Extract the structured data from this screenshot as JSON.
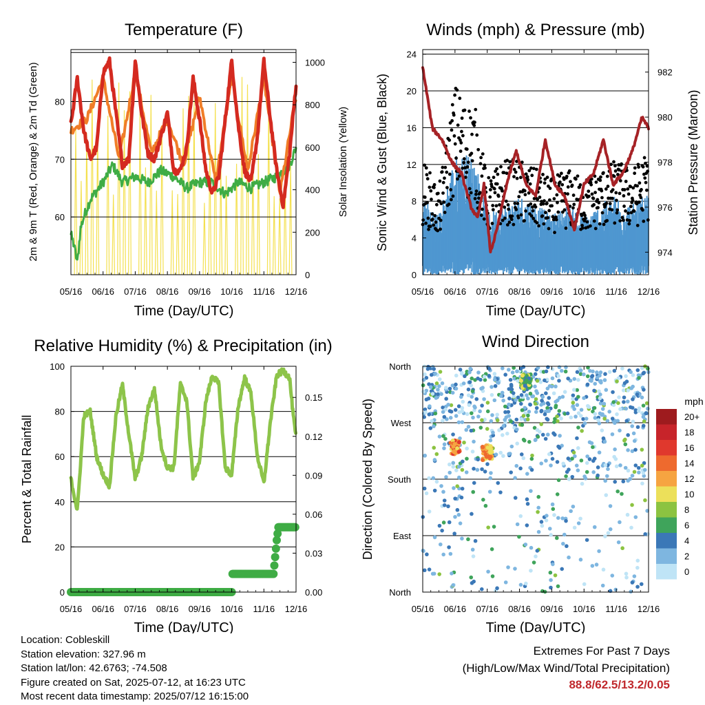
{
  "chart_data": [
    {
      "type": "line",
      "title": "Temperature (F)",
      "xlabel": "Time (Day/UTC)",
      "ylabel": "2m & 9m T (Red, Orange) & 2m Td (Green)",
      "y2label": "Solar Insolation (Yellow)",
      "x_ticks": [
        "05/16",
        "06/16",
        "07/16",
        "08/16",
        "09/16",
        "10/16",
        "11/16",
        "12/16"
      ],
      "ylim": [
        50,
        89
      ],
      "y_ticks": [
        60,
        70,
        80
      ],
      "y2lim": [
        0,
        1060
      ],
      "y2_ticks": [
        0,
        200,
        400,
        600,
        800,
        1000
      ],
      "colors": {
        "t2m": "#d42a20",
        "t9m": "#f07d28",
        "td": "#3fac45",
        "solar": "#f3dd3c"
      },
      "series": [
        {
          "name": "2m T",
          "axis": "left",
          "x": [
            0,
            0.2,
            0.4,
            0.6,
            0.8,
            1,
            1.2,
            1.4,
            1.6,
            1.8,
            2,
            2.2,
            2.4,
            2.6,
            2.8,
            3,
            3.2,
            3.4,
            3.6,
            3.8,
            4,
            4.2,
            4.4,
            4.6,
            4.8,
            5,
            5.2,
            5.4,
            5.6,
            5.8,
            6,
            6.2,
            6.4,
            6.6,
            6.8,
            7
          ],
          "values": [
            76,
            84,
            75,
            70,
            72,
            85,
            87,
            78,
            69,
            70,
            87,
            78,
            71,
            70,
            74,
            78,
            68,
            68,
            72,
            84,
            77,
            68,
            64,
            67,
            77,
            87,
            76,
            68,
            66,
            74,
            87,
            77,
            68,
            62,
            71,
            83
          ]
        },
        {
          "name": "9m T",
          "axis": "left",
          "x": [
            0,
            0.5,
            1,
            1.5,
            2,
            2.5,
            3,
            3.5,
            4,
            4.5,
            5,
            5.5,
            6,
            6.5,
            7
          ],
          "values": [
            75,
            77,
            84,
            70,
            85,
            71,
            77,
            69,
            81,
            66,
            84,
            68,
            84,
            64,
            81
          ]
        },
        {
          "name": "2m Td",
          "axis": "left",
          "x": [
            0,
            0.1,
            0.2,
            0.3,
            0.4,
            0.6,
            1,
            1.3,
            1.6,
            2,
            2.4,
            2.8,
            3.2,
            3.6,
            4,
            4.4,
            4.8,
            5.2,
            5.6,
            6,
            6.4,
            6.8,
            7
          ],
          "values": [
            57,
            55,
            52,
            58,
            60,
            63,
            66,
            69,
            66,
            67,
            66,
            68,
            67,
            65,
            66,
            66,
            64,
            66,
            65,
            66,
            67,
            69,
            72
          ]
        },
        {
          "name": "Solar Insolation",
          "axis": "right",
          "peaks_x": [
            0.6,
            1.6,
            2.6,
            3.6,
            4.6,
            5.6,
            6.6
          ],
          "peaks": [
            920,
            990,
            1000,
            930,
            1010,
            990,
            970
          ]
        }
      ]
    },
    {
      "type": "scatter",
      "title": "Winds (mph) & Pressure (mb)",
      "xlabel": "Time (Day/UTC)",
      "ylabel": "Sonic Wind & Gust (Blue, Black)",
      "y2label": "Station Pressure (Maroon)",
      "x_ticks": [
        "05/16",
        "06/16",
        "07/16",
        "08/16",
        "09/16",
        "10/16",
        "11/16",
        "12/16"
      ],
      "ylim": [
        0,
        24.5
      ],
      "y_ticks": [
        0,
        4,
        8,
        12,
        16,
        20,
        24
      ],
      "y2lim": [
        973,
        983
      ],
      "y2_ticks": [
        974,
        976,
        978,
        980,
        982
      ],
      "colors": {
        "wind": "#4f97d0",
        "gust": "#000000",
        "pressure": "#a62226"
      },
      "series": [
        {
          "name": "Pressure",
          "axis": "right",
          "x": [
            0,
            0.3,
            0.6,
            0.9,
            1.2,
            1.5,
            1.7,
            1.9,
            2.1,
            2.3,
            2.6,
            2.9,
            3.2,
            3.5,
            3.8,
            4.1,
            4.4,
            4.7,
            5.0,
            5.3,
            5.6,
            5.9,
            6.2,
            6.5,
            6.8,
            7
          ],
          "values": [
            982.2,
            979.5,
            979.0,
            978.0,
            977.5,
            976.0,
            975.5,
            977.0,
            974.0,
            975.0,
            977.0,
            978.5,
            977.0,
            976.5,
            979.0,
            977.0,
            976.5,
            975.0,
            977.0,
            977.5,
            979.0,
            977.0,
            977.5,
            978.5,
            980.0,
            979.5
          ]
        },
        {
          "name": "Wind / Gust envelope",
          "axis": "left",
          "x": [
            0,
            0.5,
            1,
            1.3,
            1.6,
            2,
            2.5,
            3,
            3.5,
            4,
            4.5,
            5,
            5.5,
            6,
            6.5,
            7
          ],
          "wind_high": [
            8,
            6,
            12,
            12,
            12,
            6,
            7,
            8,
            7,
            6,
            7,
            6,
            7,
            8,
            7,
            8
          ],
          "gust_high": [
            12,
            9,
            20,
            18,
            18,
            10,
            12,
            12,
            11,
            10,
            11,
            10,
            11,
            12,
            11,
            13
          ]
        }
      ]
    },
    {
      "type": "line",
      "title": "Relative Humidity (%) & Precipitation (in)",
      "xlabel": "Time (Day/UTC)",
      "ylabel": "Percent & Total Rainfall",
      "x_ticks": [
        "05/16",
        "06/16",
        "07/16",
        "08/16",
        "09/16",
        "10/16",
        "11/16",
        "12/16"
      ],
      "ylim": [
        0,
        100
      ],
      "y_ticks": [
        0,
        20,
        40,
        60,
        80,
        100
      ],
      "y2lim": [
        0,
        0.174
      ],
      "y2_ticks": [
        "0.00",
        "0.03",
        "0.06",
        "0.09",
        "0.12",
        "0.15"
      ],
      "colors": {
        "rh": "#8dc44a",
        "precip": "#3fac45"
      },
      "series": [
        {
          "name": "Relative Humidity",
          "axis": "left",
          "x": [
            0,
            0.2,
            0.4,
            0.6,
            0.8,
            1,
            1.2,
            1.4,
            1.6,
            1.8,
            2,
            2.2,
            2.4,
            2.6,
            2.8,
            3,
            3.2,
            3.4,
            3.6,
            3.8,
            4,
            4.2,
            4.4,
            4.6,
            4.8,
            5,
            5.2,
            5.4,
            5.6,
            5.8,
            6,
            6.2,
            6.4,
            6.6,
            6.8,
            6.9,
            7
          ],
          "values": [
            50,
            36,
            78,
            80,
            60,
            52,
            47,
            78,
            92,
            70,
            50,
            60,
            82,
            90,
            65,
            55,
            55,
            92,
            85,
            50,
            58,
            85,
            96,
            92,
            55,
            52,
            82,
            95,
            88,
            60,
            48,
            75,
            96,
            98,
            95,
            80,
            68
          ]
        },
        {
          "name": "Total Precipitation",
          "axis": "right",
          "x": [
            0,
            4.9,
            5.0,
            5.01,
            6.3,
            6.35,
            6.4,
            6.45,
            7
          ],
          "values": [
            0.0,
            0.0,
            0.0,
            0.014,
            0.014,
            0.027,
            0.04,
            0.05,
            0.05
          ]
        }
      ]
    },
    {
      "type": "scatter",
      "title": "Wind Direction",
      "xlabel": "Time (Day/UTC)",
      "ylabel": "Direction (Colored By Speed)",
      "x_ticks": [
        "05/16",
        "06/16",
        "07/16",
        "08/16",
        "09/16",
        "10/16",
        "11/16",
        "12/16"
      ],
      "ylim": [
        0,
        360
      ],
      "y_ticks": [
        "North",
        "East",
        "South",
        "West",
        "North"
      ],
      "colorbar": {
        "unit": "mph",
        "labels": [
          "20+",
          "18",
          "16",
          "14",
          "12",
          "10",
          "8",
          "6",
          "4",
          "2",
          "0"
        ],
        "colors": [
          "#9e1b1e",
          "#c7242a",
          "#e0382d",
          "#ee6a2e",
          "#f6a441",
          "#ece05a",
          "#8cc341",
          "#3fa45b",
          "#3b78b7",
          "#7eb6e0",
          "#bfe4f6"
        ]
      },
      "clusters": [
        {
          "x_center": 1.0,
          "y_center": 230,
          "speed": 13
        },
        {
          "x_center": 2.0,
          "y_center": 222,
          "speed": 12
        },
        {
          "x_center": 3.2,
          "y_center": 335,
          "speed": 7
        }
      ]
    }
  ],
  "footer": {
    "location": "Location: Cobleskill",
    "elevation": "Station elevation: 327.96 m",
    "latlon": "Station lat/lon: 42.6763; -74.508",
    "created": "Figure created on Sat, 2025-07-12, at 16:23 UTC",
    "recent": "Most recent data timestamp: 2025/07/12 16:15:00"
  },
  "extremes": {
    "title": "Extremes For Past 7 Days",
    "subtitle": "(High/Low/Max Wind/Total Precipitation)",
    "values": "88.8/62.5/13.2/0.05"
  }
}
